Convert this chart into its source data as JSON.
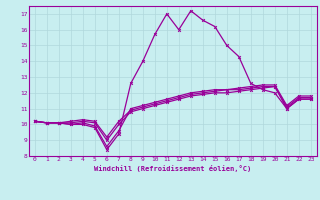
{
  "xlabel": "Windchill (Refroidissement éolien,°C)",
  "bg_color": "#c8eef0",
  "grid_color": "#b0d8dc",
  "line_color": "#990099",
  "xlim": [
    -0.5,
    23.5
  ],
  "ylim": [
    8,
    17.5
  ],
  "yticks": [
    8,
    9,
    10,
    11,
    12,
    13,
    14,
    15,
    16,
    17
  ],
  "xticks": [
    0,
    1,
    2,
    3,
    4,
    5,
    6,
    7,
    8,
    9,
    10,
    11,
    12,
    13,
    14,
    15,
    16,
    17,
    18,
    19,
    20,
    21,
    22,
    23
  ],
  "series1_x": [
    0,
    1,
    2,
    3,
    4,
    5,
    6,
    7,
    8,
    9,
    10,
    11,
    12,
    13,
    14,
    15,
    16,
    17,
    18,
    19,
    20,
    21,
    22,
    23
  ],
  "series1_y": [
    10.2,
    10.1,
    10.1,
    10.0,
    10.0,
    9.8,
    8.4,
    9.4,
    12.6,
    14.0,
    15.7,
    17.0,
    16.0,
    17.2,
    16.6,
    16.2,
    15.0,
    14.3,
    12.6,
    12.2,
    12.0,
    11.0,
    11.6,
    11.6
  ],
  "series2_x": [
    0,
    1,
    2,
    3,
    4,
    5,
    6,
    7,
    8,
    9,
    10,
    11,
    12,
    13,
    14,
    15,
    16,
    17,
    18,
    19,
    20,
    21,
    22,
    23
  ],
  "series2_y": [
    10.2,
    10.1,
    10.1,
    10.0,
    10.1,
    9.9,
    8.6,
    9.6,
    11.0,
    11.2,
    11.4,
    11.6,
    11.8,
    12.0,
    12.1,
    12.2,
    12.2,
    12.2,
    12.3,
    12.4,
    12.4,
    11.0,
    11.6,
    11.6
  ],
  "series3_x": [
    0,
    1,
    2,
    3,
    4,
    5,
    6,
    7,
    8,
    9,
    10,
    11,
    12,
    13,
    14,
    15,
    16,
    17,
    18,
    19,
    20,
    21,
    22,
    23
  ],
  "series3_y": [
    10.2,
    10.1,
    10.1,
    10.1,
    10.2,
    10.1,
    9.0,
    10.0,
    10.8,
    11.0,
    11.2,
    11.4,
    11.6,
    11.8,
    11.9,
    12.0,
    12.0,
    12.1,
    12.2,
    12.3,
    12.4,
    11.1,
    11.7,
    11.7
  ],
  "series4_x": [
    0,
    1,
    2,
    3,
    4,
    5,
    6,
    7,
    8,
    9,
    10,
    11,
    12,
    13,
    14,
    15,
    16,
    17,
    18,
    19,
    20,
    21,
    22,
    23
  ],
  "series4_y": [
    10.2,
    10.1,
    10.1,
    10.2,
    10.3,
    10.2,
    9.2,
    10.2,
    10.9,
    11.1,
    11.3,
    11.5,
    11.7,
    11.9,
    12.0,
    12.1,
    12.2,
    12.3,
    12.4,
    12.5,
    12.5,
    11.2,
    11.8,
    11.8
  ]
}
